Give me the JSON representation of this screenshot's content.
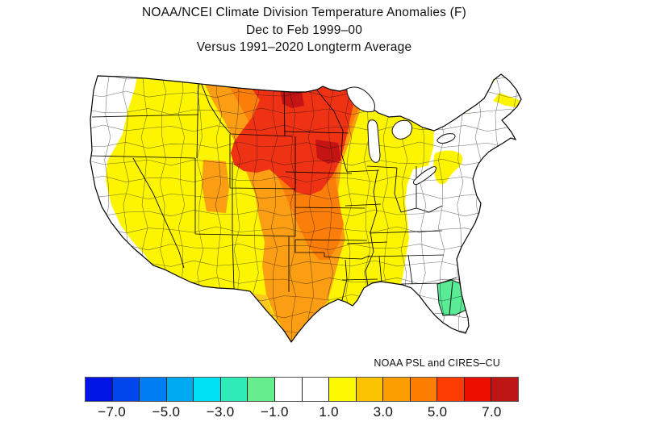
{
  "chart_data": {
    "type": "choropleth-map",
    "area": "Contiguous United States — NOAA climate divisions",
    "title_lines": [
      "NOAA/NCEI Climate Division Temperature Anomalies (F)",
      "Dec to Feb 1999–00",
      "Versus 1991–2020 Longterm Average"
    ],
    "credit": "NOAA PSL and CIRES–CU",
    "units": "degrees F anomaly vs 1991-2020 average",
    "colorbar": {
      "orientation": "horizontal",
      "range": [
        -8,
        8
      ],
      "segment_size": 1,
      "tick_labels": [
        "−7.0",
        "−5.0",
        "−3.0",
        "−1.0",
        "1.0",
        "3.0",
        "5.0",
        "7.0"
      ],
      "segment_colors": [
        "#0014e6",
        "#0046eb",
        "#007df0",
        "#00aaf0",
        "#00e1f5",
        "#2eebb8",
        "#66ee8e",
        "#ffffff",
        "#ffffff",
        "#fcf800",
        "#fcc400",
        "#fc9e00",
        "#fc7e00",
        "#fc3c00",
        "#ec0f00",
        "#bd1414"
      ]
    },
    "map_regions": [
      {
        "name": "Pacific Northwest (W Washington / W Oregon)",
        "anomaly_f": "-1 to 1",
        "color": "#ffffff"
      },
      {
        "name": "California coastal strip",
        "anomaly_f": "-1 to 1",
        "color": "#ffffff"
      },
      {
        "name": "Interior West (inland CA, NV, AZ, NM, E WA/OR, ID)",
        "anomaly_f": "1 to 3",
        "color": "#fdf500"
      },
      {
        "name": "West Texas / transition divisions",
        "anomaly_f": "2 to 3",
        "color": "#fcc81e"
      },
      {
        "name": "Central band (MT, WY, CO, KS, OK, TX, IA, MO, MN, W WI)",
        "anomaly_f": "3 to 5",
        "color": "#fc9e14"
      },
      {
        "name": "Central Utah divisions",
        "anomaly_f": "3 to 4",
        "color": "#fc9e14"
      },
      {
        "name": "Plains core (E MT, Dakotas, NE, KS, OK tongue)",
        "anomaly_f": "4 to 5",
        "color": "#fc7e0a"
      },
      {
        "name": "Northern Plains (ND, SD, W MN, NE CO, central NE)",
        "anomaly_f": "5 to 7",
        "color": "#f03214"
      },
      {
        "name": "Northeast North Dakota divisions",
        "anomaly_f": "7 to 8",
        "color": "#c41414"
      },
      {
        "name": "Ohio Valley, Northeast, Mid-Atlantic, Southeast",
        "anomaly_f": "-1 to 1",
        "color": "#ffffff"
      },
      {
        "name": "Western Pennsylvania divisions",
        "anomaly_f": "1 to 2",
        "color": "#fdf500"
      },
      {
        "name": "Coastal Maine divisions",
        "anomaly_f": "1 to 2",
        "color": "#fdf500"
      },
      {
        "name": "Central Florida divisions",
        "anomaly_f": "-2 to -1",
        "color": "#5aeb96"
      },
      {
        "name": "Great Lakes (water)",
        "anomaly_f": "none",
        "color": "#ffffff"
      }
    ]
  }
}
